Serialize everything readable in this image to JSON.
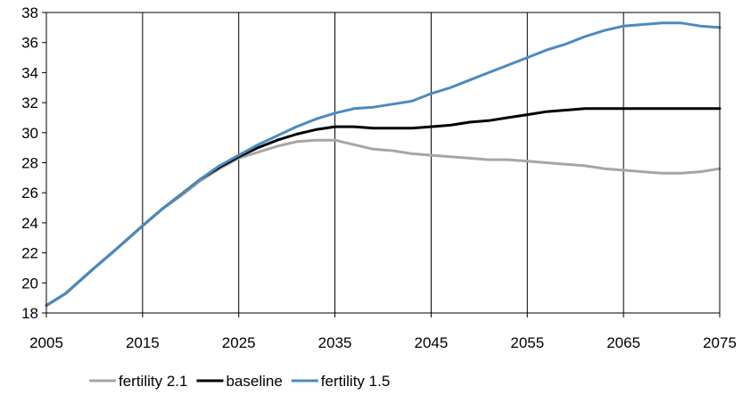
{
  "chart_data": {
    "type": "line",
    "title": "",
    "xlabel": "",
    "ylabel": "",
    "xlim": [
      2005,
      2075
    ],
    "ylim": [
      18,
      38
    ],
    "x_ticks": [
      2005,
      2015,
      2025,
      2035,
      2045,
      2055,
      2065,
      2075
    ],
    "y_ticks": [
      18,
      20,
      22,
      24,
      26,
      28,
      30,
      32,
      34,
      36,
      38
    ],
    "grid": {
      "vertical": true,
      "horizontal": false
    },
    "legend_position": "bottom",
    "x": [
      2005,
      2007,
      2010,
      2012,
      2015,
      2017,
      2019,
      2021,
      2023,
      2025,
      2027,
      2029,
      2031,
      2033,
      2035,
      2037,
      2039,
      2041,
      2043,
      2045,
      2047,
      2049,
      2051,
      2053,
      2055,
      2057,
      2059,
      2061,
      2063,
      2065,
      2067,
      2069,
      2071,
      2073,
      2075
    ],
    "series": [
      {
        "name": "fertility 2.1",
        "color": "#a6a6a6",
        "values": [
          18.5,
          19.3,
          21.0,
          22.1,
          23.8,
          24.9,
          25.8,
          26.8,
          27.6,
          28.3,
          28.7,
          29.1,
          29.4,
          29.5,
          29.5,
          29.2,
          28.9,
          28.8,
          28.6,
          28.5,
          28.4,
          28.3,
          28.2,
          28.2,
          28.1,
          28.0,
          27.9,
          27.8,
          27.6,
          27.5,
          27.4,
          27.3,
          27.3,
          27.4,
          27.6
        ]
      },
      {
        "name": "baseline",
        "color": "#000000",
        "values": [
          18.5,
          19.3,
          21.0,
          22.1,
          23.8,
          24.9,
          25.9,
          26.9,
          27.7,
          28.4,
          29.0,
          29.5,
          29.9,
          30.2,
          30.4,
          30.4,
          30.3,
          30.3,
          30.3,
          30.4,
          30.5,
          30.7,
          30.8,
          31.0,
          31.2,
          31.4,
          31.5,
          31.6,
          31.6,
          31.6,
          31.6,
          31.6,
          31.6,
          31.6,
          31.6
        ]
      },
      {
        "name": "fertility 1.5",
        "color": "#4a8bc2",
        "values": [
          18.5,
          19.3,
          21.0,
          22.1,
          23.8,
          24.9,
          25.9,
          26.9,
          27.8,
          28.5,
          29.2,
          29.8,
          30.4,
          30.9,
          31.3,
          31.6,
          31.7,
          31.9,
          32.1,
          32.6,
          33.0,
          33.5,
          34.0,
          34.5,
          35.0,
          35.5,
          35.9,
          36.4,
          36.8,
          37.1,
          37.2,
          37.3,
          37.3,
          37.1,
          37.0
        ]
      }
    ]
  }
}
